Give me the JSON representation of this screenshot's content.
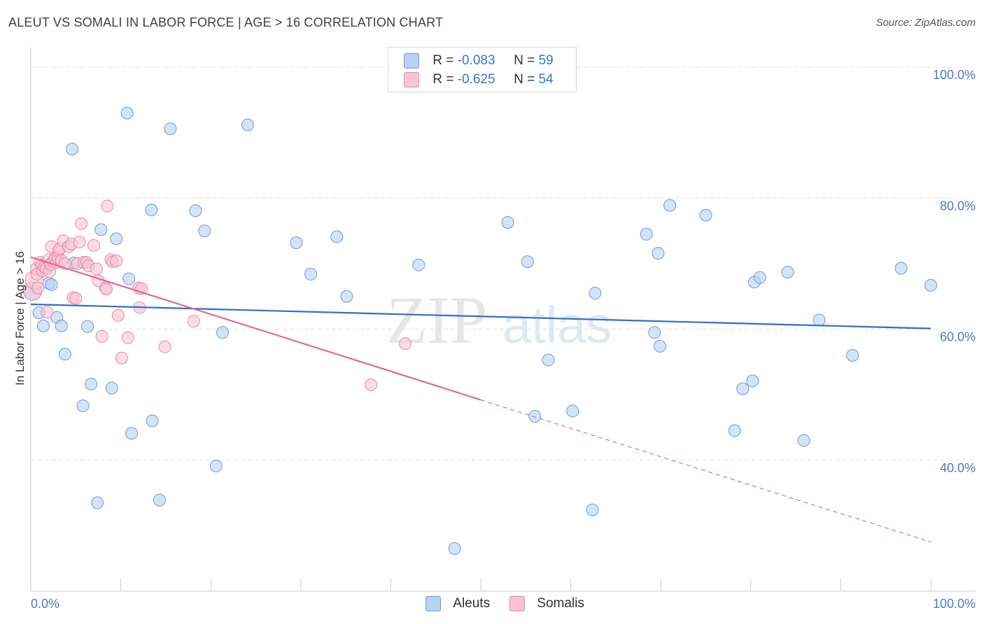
{
  "title": "ALEUT VS SOMALI IN LABOR FORCE | AGE > 16 CORRELATION CHART",
  "source": "Source: ZipAtlas.com",
  "watermark": {
    "zip": "ZIP",
    "atlas": "atlas"
  },
  "legend": {
    "rows": [
      {
        "r_label": "R = ",
        "r_value": "-0.083",
        "n_label": "N = ",
        "n_value": "59",
        "color": "#b8d0f2",
        "border": "#6f9ad6"
      },
      {
        "r_label": "R = ",
        "r_value": "-0.625",
        "n_label": "N = ",
        "n_value": "54",
        "color": "#f8c4d4",
        "border": "#e48aa8"
      }
    ]
  },
  "chart_data": {
    "type": "scatter",
    "title": "ALEUT VS SOMALI IN LABOR FORCE | AGE > 16 CORRELATION CHART",
    "xlabel": "",
    "ylabel": "In Labor Force | Age > 16",
    "xlim": [
      0,
      100
    ],
    "ylim": [
      20,
      103
    ],
    "x_tick_labels": {
      "left": "0.0%",
      "right": "100.0%"
    },
    "y_ticks": [
      {
        "value": 100,
        "label": "100.0%"
      },
      {
        "value": 80,
        "label": "80.0%"
      },
      {
        "value": 60,
        "label": "60.0%"
      },
      {
        "value": 40,
        "label": "40.0%"
      }
    ],
    "grid": true,
    "legend_position": "top-center",
    "series": [
      {
        "name": "Aleuts",
        "color": "#b8d0f2",
        "stroke": "#6f9ad6",
        "trend_color": "#2f6fc7",
        "trend": {
          "x0": 0,
          "y0": 63.8,
          "x1": 100,
          "y1": 60.1
        },
        "points": [
          [
            0.2,
            65.8
          ],
          [
            0.9,
            62.5
          ],
          [
            1.4,
            60.5
          ],
          [
            2.0,
            67.0
          ],
          [
            2.3,
            66.8
          ],
          [
            2.9,
            61.8
          ],
          [
            3.4,
            60.5
          ],
          [
            3.8,
            56.2
          ],
          [
            4.6,
            87.5
          ],
          [
            4.8,
            70.1
          ],
          [
            5.8,
            48.3
          ],
          [
            6.3,
            60.4
          ],
          [
            6.7,
            51.6
          ],
          [
            7.4,
            33.5
          ],
          [
            7.8,
            75.2
          ],
          [
            9.0,
            51.0
          ],
          [
            9.5,
            73.8
          ],
          [
            10.7,
            93.0
          ],
          [
            10.9,
            67.7
          ],
          [
            11.2,
            44.1
          ],
          [
            13.4,
            78.2
          ],
          [
            13.5,
            46.0
          ],
          [
            14.3,
            33.9
          ],
          [
            15.5,
            90.6
          ],
          [
            18.3,
            78.1
          ],
          [
            19.3,
            75.0
          ],
          [
            20.6,
            39.1
          ],
          [
            21.3,
            59.5
          ],
          [
            24.1,
            91.2
          ],
          [
            29.5,
            73.2
          ],
          [
            31.1,
            68.4
          ],
          [
            34.0,
            74.1
          ],
          [
            35.1,
            65.0
          ],
          [
            43.1,
            69.8
          ],
          [
            47.1,
            26.5
          ],
          [
            53.0,
            76.3
          ],
          [
            55.2,
            70.3
          ],
          [
            56.0,
            46.7
          ],
          [
            57.5,
            55.3
          ],
          [
            60.2,
            47.5
          ],
          [
            62.4,
            32.4
          ],
          [
            62.7,
            65.5
          ],
          [
            68.4,
            74.5
          ],
          [
            69.3,
            59.5
          ],
          [
            69.7,
            71.6
          ],
          [
            69.9,
            57.4
          ],
          [
            71.0,
            78.9
          ],
          [
            75.0,
            77.4
          ],
          [
            78.2,
            44.5
          ],
          [
            79.1,
            50.9
          ],
          [
            80.2,
            52.1
          ],
          [
            80.4,
            67.2
          ],
          [
            81.0,
            67.9
          ],
          [
            84.1,
            68.7
          ],
          [
            85.9,
            43.0
          ],
          [
            87.6,
            61.4
          ],
          [
            91.3,
            56.0
          ],
          [
            96.7,
            69.3
          ],
          [
            100.0,
            66.7
          ]
        ]
      },
      {
        "name": "Somalis",
        "color": "#f8c4d4",
        "stroke": "#e48aa8",
        "trend_color": "#e3679a",
        "trend": {
          "x0": 0,
          "y0": 71.0,
          "x1": 50,
          "y1": 49.2
        },
        "trend_dashed": {
          "x0": 50,
          "y0": 49.2,
          "x1": 100,
          "y1": 27.5
        },
        "points": [
          [
            0.2,
            65.8
          ],
          [
            0.4,
            67.5
          ],
          [
            0.6,
            69.2
          ],
          [
            0.7,
            68.4
          ],
          [
            0.8,
            66.3
          ],
          [
            1.0,
            70.2
          ],
          [
            1.2,
            69.8
          ],
          [
            1.3,
            68.9
          ],
          [
            1.5,
            69.5
          ],
          [
            1.7,
            69.3
          ],
          [
            1.8,
            62.6
          ],
          [
            2.0,
            70.6
          ],
          [
            2.1,
            68.8
          ],
          [
            2.2,
            69.9
          ],
          [
            2.3,
            72.6
          ],
          [
            2.5,
            70.4
          ],
          [
            2.7,
            70.8
          ],
          [
            2.9,
            70.2
          ],
          [
            3.0,
            70.9
          ],
          [
            3.1,
            72.0
          ],
          [
            3.2,
            72.3
          ],
          [
            3.4,
            70.5
          ],
          [
            3.6,
            73.5
          ],
          [
            3.8,
            70.0
          ],
          [
            4.2,
            72.6
          ],
          [
            4.5,
            73.0
          ],
          [
            4.7,
            64.8
          ],
          [
            5.0,
            64.7
          ],
          [
            5.2,
            70.0
          ],
          [
            5.4,
            73.3
          ],
          [
            5.6,
            76.1
          ],
          [
            5.9,
            70.2
          ],
          [
            6.2,
            70.2
          ],
          [
            6.4,
            69.7
          ],
          [
            7.0,
            72.8
          ],
          [
            7.3,
            69.2
          ],
          [
            7.5,
            67.4
          ],
          [
            7.9,
            58.9
          ],
          [
            8.3,
            66.3
          ],
          [
            8.4,
            66.1
          ],
          [
            8.5,
            78.8
          ],
          [
            8.9,
            70.6
          ],
          [
            9.1,
            70.3
          ],
          [
            9.5,
            70.4
          ],
          [
            9.7,
            62.1
          ],
          [
            10.1,
            55.6
          ],
          [
            10.8,
            58.7
          ],
          [
            12.0,
            66.3
          ],
          [
            12.1,
            63.3
          ],
          [
            12.3,
            66.2
          ],
          [
            14.9,
            57.3
          ],
          [
            18.1,
            61.2
          ],
          [
            41.6,
            57.8
          ],
          [
            37.8,
            51.5
          ]
        ]
      }
    ]
  }
}
